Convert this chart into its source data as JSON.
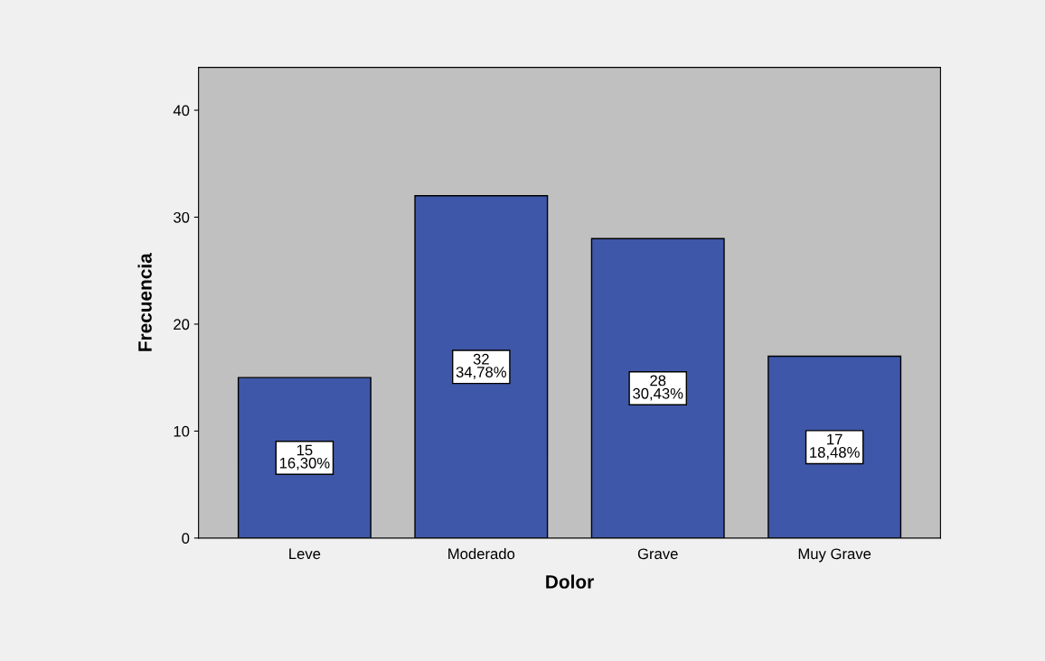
{
  "chart_data": {
    "type": "bar",
    "xlabel": "Dolor",
    "ylabel": "Frecuencia",
    "categories": [
      "Leve",
      "Moderado",
      "Grave",
      "Muy Grave"
    ],
    "values": [
      15,
      32,
      28,
      17
    ],
    "value_labels": [
      "15\n16,30%",
      "32\n34,78%",
      "28\n30,43%",
      "17\n18,48%"
    ],
    "color": "#3f57a8",
    "ylim": [
      0,
      44
    ],
    "yticks": [
      0,
      10,
      20,
      30,
      40
    ],
    "grid": false
  }
}
